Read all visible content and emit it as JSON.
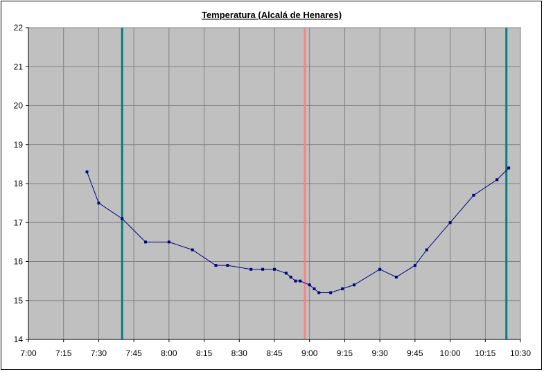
{
  "chart_data": {
    "type": "line",
    "title": "Temperatura (Alcalá de Henares)",
    "xlabel": "",
    "ylabel": "",
    "x_ticks": [
      "7:00",
      "7:15",
      "7:30",
      "7:45",
      "8:00",
      "8:15",
      "8:30",
      "8:45",
      "9:00",
      "9:15",
      "9:30",
      "9:45",
      "10:00",
      "10:15",
      "10:30"
    ],
    "y_ticks": [
      "14",
      "15",
      "16",
      "17",
      "18",
      "19",
      "20",
      "21",
      "22"
    ],
    "xlim": [
      "7:00",
      "10:30"
    ],
    "ylim": [
      14,
      22
    ],
    "grid": true,
    "legend": "none",
    "colors": {
      "plot_background": "#c0c0c0",
      "series": "#000080",
      "vertical_marker_teal": "#008080",
      "vertical_marker_pink": "#ff8080",
      "gridline": "#808080"
    },
    "vertical_markers": [
      {
        "x": "7:40",
        "color": "teal"
      },
      {
        "x": "8:58",
        "color": "pink"
      },
      {
        "x": "10:24",
        "color": "teal"
      }
    ],
    "series": [
      {
        "x": [
          "7:25",
          "7:30",
          "7:40",
          "7:50",
          "8:00",
          "8:10",
          "8:20",
          "8:25",
          "8:35",
          "8:40",
          "8:45",
          "8:50",
          "8:52",
          "8:54",
          "8:56",
          "9:00",
          "9:02",
          "9:04",
          "9:09",
          "9:14",
          "9:19",
          "9:30",
          "9:37",
          "9:45",
          "9:50",
          "10:00",
          "10:10",
          "10:20",
          "10:25"
        ],
        "values": [
          18.3,
          17.5,
          17.1,
          16.5,
          16.5,
          16.3,
          15.9,
          15.9,
          15.8,
          15.8,
          15.8,
          15.7,
          15.6,
          15.5,
          15.5,
          15.4,
          15.3,
          15.2,
          15.2,
          15.3,
          15.4,
          15.8,
          15.6,
          15.9,
          16.3,
          17.0,
          17.7,
          18.1,
          18.4
        ]
      }
    ]
  }
}
